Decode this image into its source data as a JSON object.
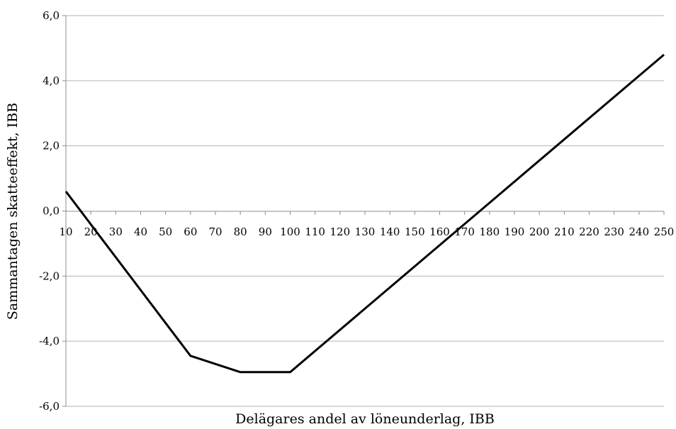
{
  "chart_data": {
    "type": "line",
    "title": "",
    "xlabel": "Delägares andel av löneunderlag, IBB",
    "ylabel": "Sammantagen skatteeffekt, IBB",
    "x_ticks": [
      "10",
      "20",
      "30",
      "40",
      "50",
      "60",
      "70",
      "80",
      "90",
      "100",
      "110",
      "120",
      "130",
      "140",
      "150",
      "160",
      "170",
      "180",
      "190",
      "200",
      "210",
      "220",
      "230",
      "240",
      "250"
    ],
    "y_ticks": [
      "6,0",
      "4,0",
      "2,0",
      "0,0",
      "-2,0",
      "-4,0",
      "-6,0"
    ],
    "xlim": [
      10,
      250
    ],
    "ylim": [
      -6,
      6
    ],
    "grid": "horizontal",
    "series": [
      {
        "x": [
          10,
          60,
          80,
          100,
          250
        ],
        "y": [
          0.6,
          -4.45,
          -4.95,
          -4.95,
          4.8
        ],
        "color": "#000000"
      }
    ]
  }
}
